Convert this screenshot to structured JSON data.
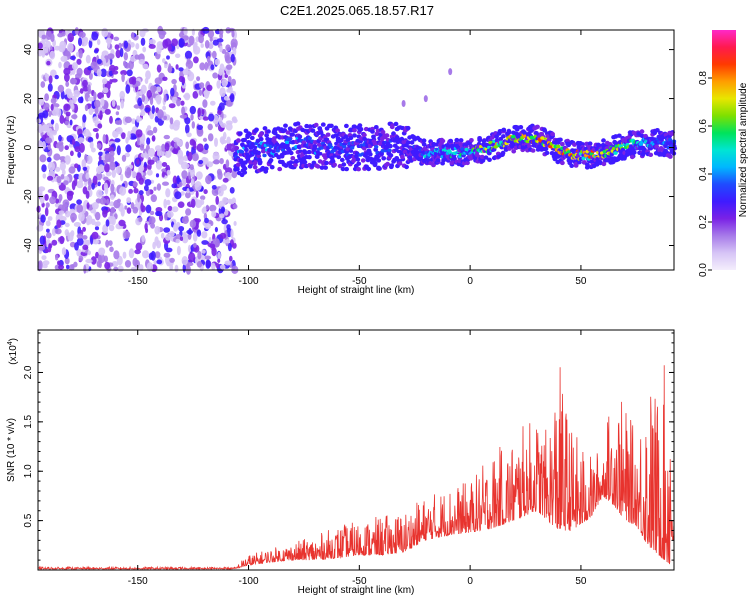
{
  "figure": {
    "title": "C2E1.2025.065.18.57.R17"
  },
  "chart_data": [
    {
      "type": "heatmap",
      "xlabel": "Height of straight line (km)",
      "ylabel": "Frequency (Hz)",
      "xlim": [
        -195,
        92
      ],
      "ylim": [
        -50,
        48
      ],
      "xticks": [
        -150,
        -100,
        -50,
        0,
        50
      ],
      "yticks": [
        -40,
        -20,
        0,
        20,
        40
      ],
      "grid": false,
      "colorbar": {
        "label": "Normalized spectral amplitude",
        "ticks": [
          0.0,
          0.2,
          0.4,
          0.6,
          0.8
        ],
        "range": [
          0,
          1
        ],
        "colors": [
          "#f4eefc",
          "#d6c4f6",
          "#a77ae9",
          "#7a22e6",
          "#3f1bff",
          "#1f4bff",
          "#00b7ff",
          "#00e5d3",
          "#00e35b",
          "#7ee000",
          "#e8e600",
          "#ff9d00",
          "#ff3a00",
          "#ff1a4e",
          "#ff28c8"
        ]
      },
      "noise_region": {
        "x_from": -195,
        "x_to": -106,
        "freq_from": -50,
        "freq_to": 48
      },
      "ridge": {
        "x": [
          -106,
          -95,
          -85,
          -75,
          -60,
          -45,
          -35,
          -28,
          -20,
          -10,
          0,
          8,
          15,
          22,
          28,
          35,
          42,
          50,
          57,
          64,
          72,
          80,
          88,
          92
        ],
        "freq": [
          -3,
          -1,
          0,
          1,
          0,
          0,
          1,
          0,
          -2,
          -2,
          -2,
          0,
          2,
          4,
          4,
          2,
          -2,
          -3,
          -3,
          -1,
          1,
          2,
          2,
          1
        ]
      },
      "ridge_amplitude": {
        "x": [
          -106,
          -90,
          -60,
          -35,
          -28,
          -20,
          -5,
          10,
          25,
          40,
          55,
          70,
          85,
          92
        ],
        "amp": [
          0.4,
          0.45,
          0.4,
          0.35,
          0.3,
          0.5,
          0.6,
          0.75,
          0.85,
          0.9,
          0.85,
          0.7,
          0.45,
          0.4
        ]
      },
      "stray_marks": [
        {
          "x": -20,
          "freq": 20
        },
        {
          "x": -30,
          "freq": 18
        },
        {
          "x": -9,
          "freq": 31
        }
      ]
    },
    {
      "type": "line",
      "xlabel": "Height of straight line (km)",
      "ylabel": "SNR (10 * v/v)",
      "scale_note": "(x10",
      "scale_exp": "4",
      "ylabel_unit": ")",
      "xlim": [
        -195,
        92
      ],
      "ylim": [
        0,
        2.43
      ],
      "xticks": [
        -150,
        -100,
        -50,
        0,
        50
      ],
      "yticks": [
        0.5,
        1.0,
        1.5,
        2.0
      ],
      "grid": false,
      "series": [
        {
          "color": "#e8332e",
          "envelope": {
            "x": [
              -195,
              -106,
              -101,
              -90,
              -80,
              -70,
              -60,
              -50,
              -40,
              -30,
              -20,
              -10,
              0,
              10,
              20,
              25,
              30,
              35,
              40,
              45,
              50,
              55,
              60,
              65,
              70,
              75,
              80,
              85,
              90,
              92
            ],
            "base": [
              0.01,
              0.01,
              0.04,
              0.08,
              0.1,
              0.1,
              0.12,
              0.15,
              0.15,
              0.18,
              0.3,
              0.35,
              0.38,
              0.42,
              0.5,
              0.55,
              0.6,
              0.5,
              0.4,
              0.4,
              0.45,
              0.55,
              0.75,
              0.65,
              0.5,
              0.45,
              0.25,
              0.15,
              0.05,
              0.3
            ],
            "peak": [
              0.03,
              0.03,
              0.15,
              0.22,
              0.28,
              0.35,
              0.45,
              0.5,
              0.55,
              0.6,
              0.75,
              0.85,
              0.9,
              1.2,
              1.35,
              1.5,
              1.55,
              1.4,
              2.17,
              1.5,
              1.3,
              1.15,
              1.3,
              1.9,
              1.65,
              1.4,
              2.0,
              1.8,
              2.34,
              1.7
            ]
          }
        }
      ]
    }
  ]
}
